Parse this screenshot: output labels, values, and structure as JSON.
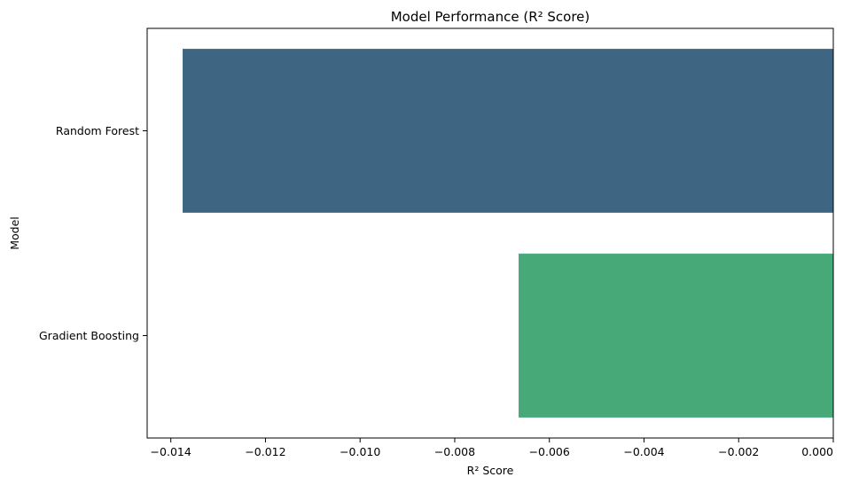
{
  "chart_data": {
    "type": "bar",
    "orientation": "horizontal",
    "title": "Model Performance (R² Score)",
    "xlabel": "R² Score",
    "ylabel": "Model",
    "categories": [
      "Random Forest",
      "Gradient Boosting"
    ],
    "values": [
      -0.01375,
      -0.00665
    ],
    "colors": [
      "#3e6683",
      "#47a878"
    ],
    "xlim": [
      -0.0145,
      0.0
    ],
    "xticks": [
      -0.014,
      -0.012,
      -0.01,
      -0.008,
      -0.006,
      -0.004,
      -0.002,
      0.0
    ],
    "xtick_labels": [
      "−0.014",
      "−0.012",
      "−0.010",
      "−0.008",
      "−0.006",
      "−0.004",
      "−0.002",
      "0.000"
    ],
    "grid": false,
    "legend": "none"
  }
}
